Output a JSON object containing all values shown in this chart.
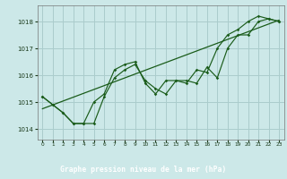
{
  "xlabel": "Graphe pression niveau de la mer (hPa)",
  "background_color": "#cce8e8",
  "grid_color": "#aacccc",
  "line_color": "#1a5c1a",
  "xlabel_bg": "#2a6a2a",
  "xlabel_fg": "#ffffff",
  "x_ticks": [
    0,
    1,
    2,
    3,
    4,
    5,
    6,
    7,
    8,
    9,
    10,
    11,
    12,
    13,
    14,
    15,
    16,
    17,
    18,
    19,
    20,
    21,
    22,
    23
  ],
  "ylim": [
    1013.6,
    1018.6
  ],
  "xlim": [
    -0.5,
    23.5
  ],
  "yticks": [
    1014,
    1015,
    1016,
    1017,
    1018
  ],
  "series1": [
    1015.2,
    1014.9,
    1014.6,
    1014.2,
    1014.2,
    1014.2,
    1015.2,
    1015.9,
    1016.2,
    1016.4,
    1015.8,
    1015.5,
    1015.3,
    1015.8,
    1015.8,
    1015.7,
    1016.3,
    1015.9,
    1017.0,
    1017.5,
    1017.5,
    1018.0,
    1018.1,
    1018.0
  ],
  "series2": [
    1015.2,
    1014.9,
    1014.6,
    1014.2,
    1014.2,
    1015.0,
    1015.3,
    1016.2,
    1016.4,
    1016.5,
    1015.7,
    1015.3,
    1015.8,
    1015.8,
    1015.7,
    1016.2,
    1016.1,
    1017.0,
    1017.5,
    1017.7,
    1018.0,
    1018.2,
    1018.1,
    1018.0
  ],
  "trend_line": [
    [
      0,
      1014.75
    ],
    [
      23,
      1018.05
    ]
  ]
}
